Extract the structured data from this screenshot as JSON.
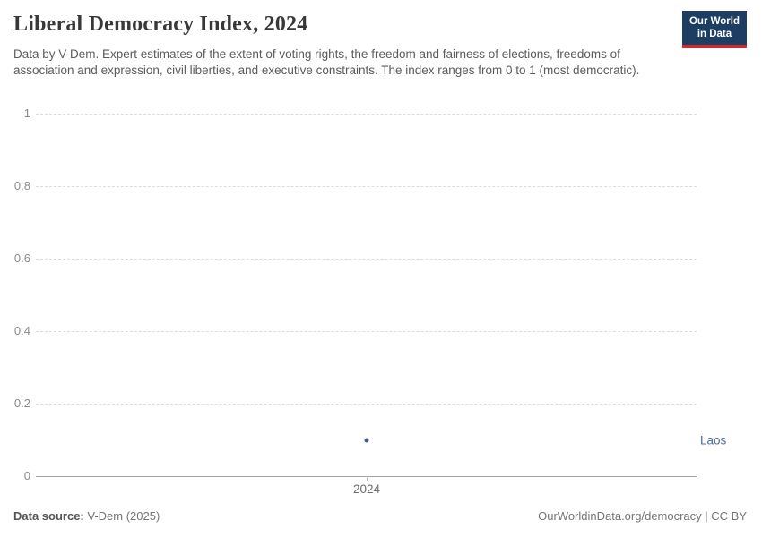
{
  "header": {
    "title": "Liberal Democracy Index, 2024",
    "subtitle": "Data by V-Dem. Expert estimates of the extent of voting rights, the freedom and fairness of elections, freedoms of association and expression, civil liberties, and executive constraints. The index ranges from 0 to 1 (most democratic).",
    "logo": {
      "line1": "Our World",
      "line2": "in Data",
      "bg_color": "#1d3d63",
      "accent_color": "#ca2b31"
    }
  },
  "chart_data": {
    "type": "scatter",
    "title": "Liberal Democracy Index, 2024",
    "x": [
      2024
    ],
    "xtick_labels": [
      "2024"
    ],
    "series": [
      {
        "name": "Laos",
        "values": [
          0.1
        ]
      }
    ],
    "xlabel": "",
    "ylabel": "",
    "ylim": [
      0,
      1
    ],
    "yticks": [
      0,
      0.2,
      0.4,
      0.6,
      0.8,
      1
    ],
    "grid": "horizontal-dashed",
    "legend_position": "right-of-plot-entity-label",
    "point_color": "#3c5b8f",
    "label_color": "#4c6a9c"
  },
  "footer": {
    "source_label": "Data source:",
    "source_value": " V-Dem (2025)",
    "link_text": "OurWorldinData.org/democracy | CC BY"
  }
}
